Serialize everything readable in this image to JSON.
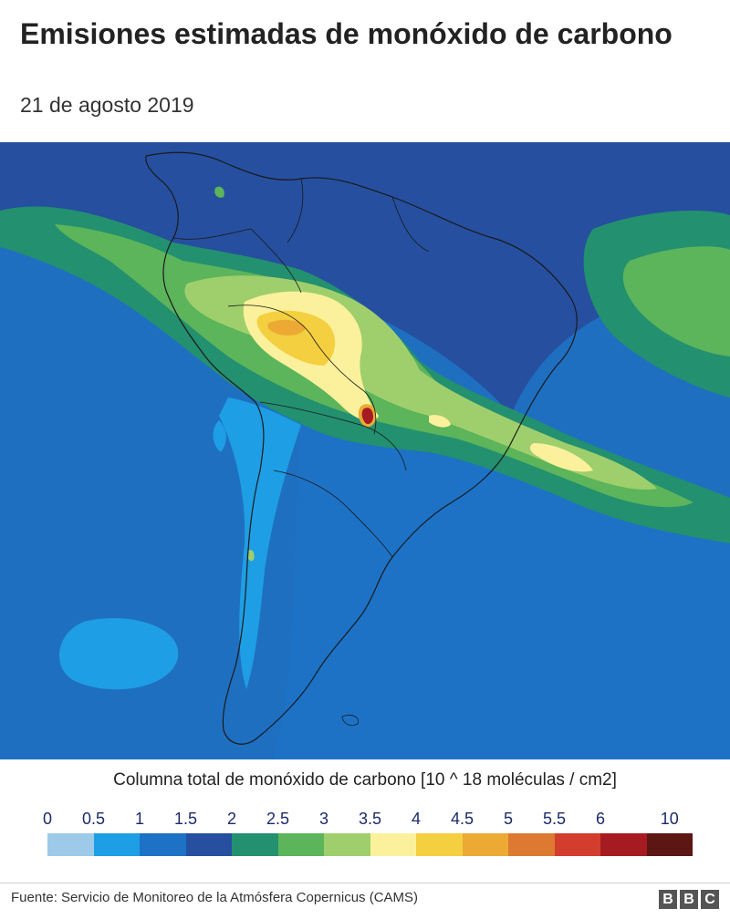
{
  "header": {
    "title": "Emisiones estimadas de monóxido de carbono",
    "subtitle": "21 de agosto 2019"
  },
  "map": {
    "region": "América del Sur",
    "ocean_color": "#1f6fc0",
    "land_outline_color": "#1a1a1a"
  },
  "legend": {
    "title": "Columna total de monóxido de carbono [10 ^ 18 moléculas / cm2]",
    "ticks": [
      "0",
      "0.5",
      "1",
      "1.5",
      "2",
      "2.5",
      "3",
      "3.5",
      "4",
      "4.5",
      "5",
      "5.5",
      "6",
      "10"
    ],
    "colors": [
      "#9ecae9",
      "#1e9ee4",
      "#1d72c6",
      "#264f9f",
      "#23906f",
      "#5cb45b",
      "#9fcf6c",
      "#fbf19c",
      "#f4cf40",
      "#ecaa35",
      "#dd7930",
      "#d23d2e",
      "#a61b22",
      "#5c1614"
    ]
  },
  "footer": {
    "source": "Fuente: Servicio de Monitoreo de la Atmósfera Copernicus (CAMS)",
    "logo_letters": [
      "B",
      "B",
      "C"
    ]
  }
}
